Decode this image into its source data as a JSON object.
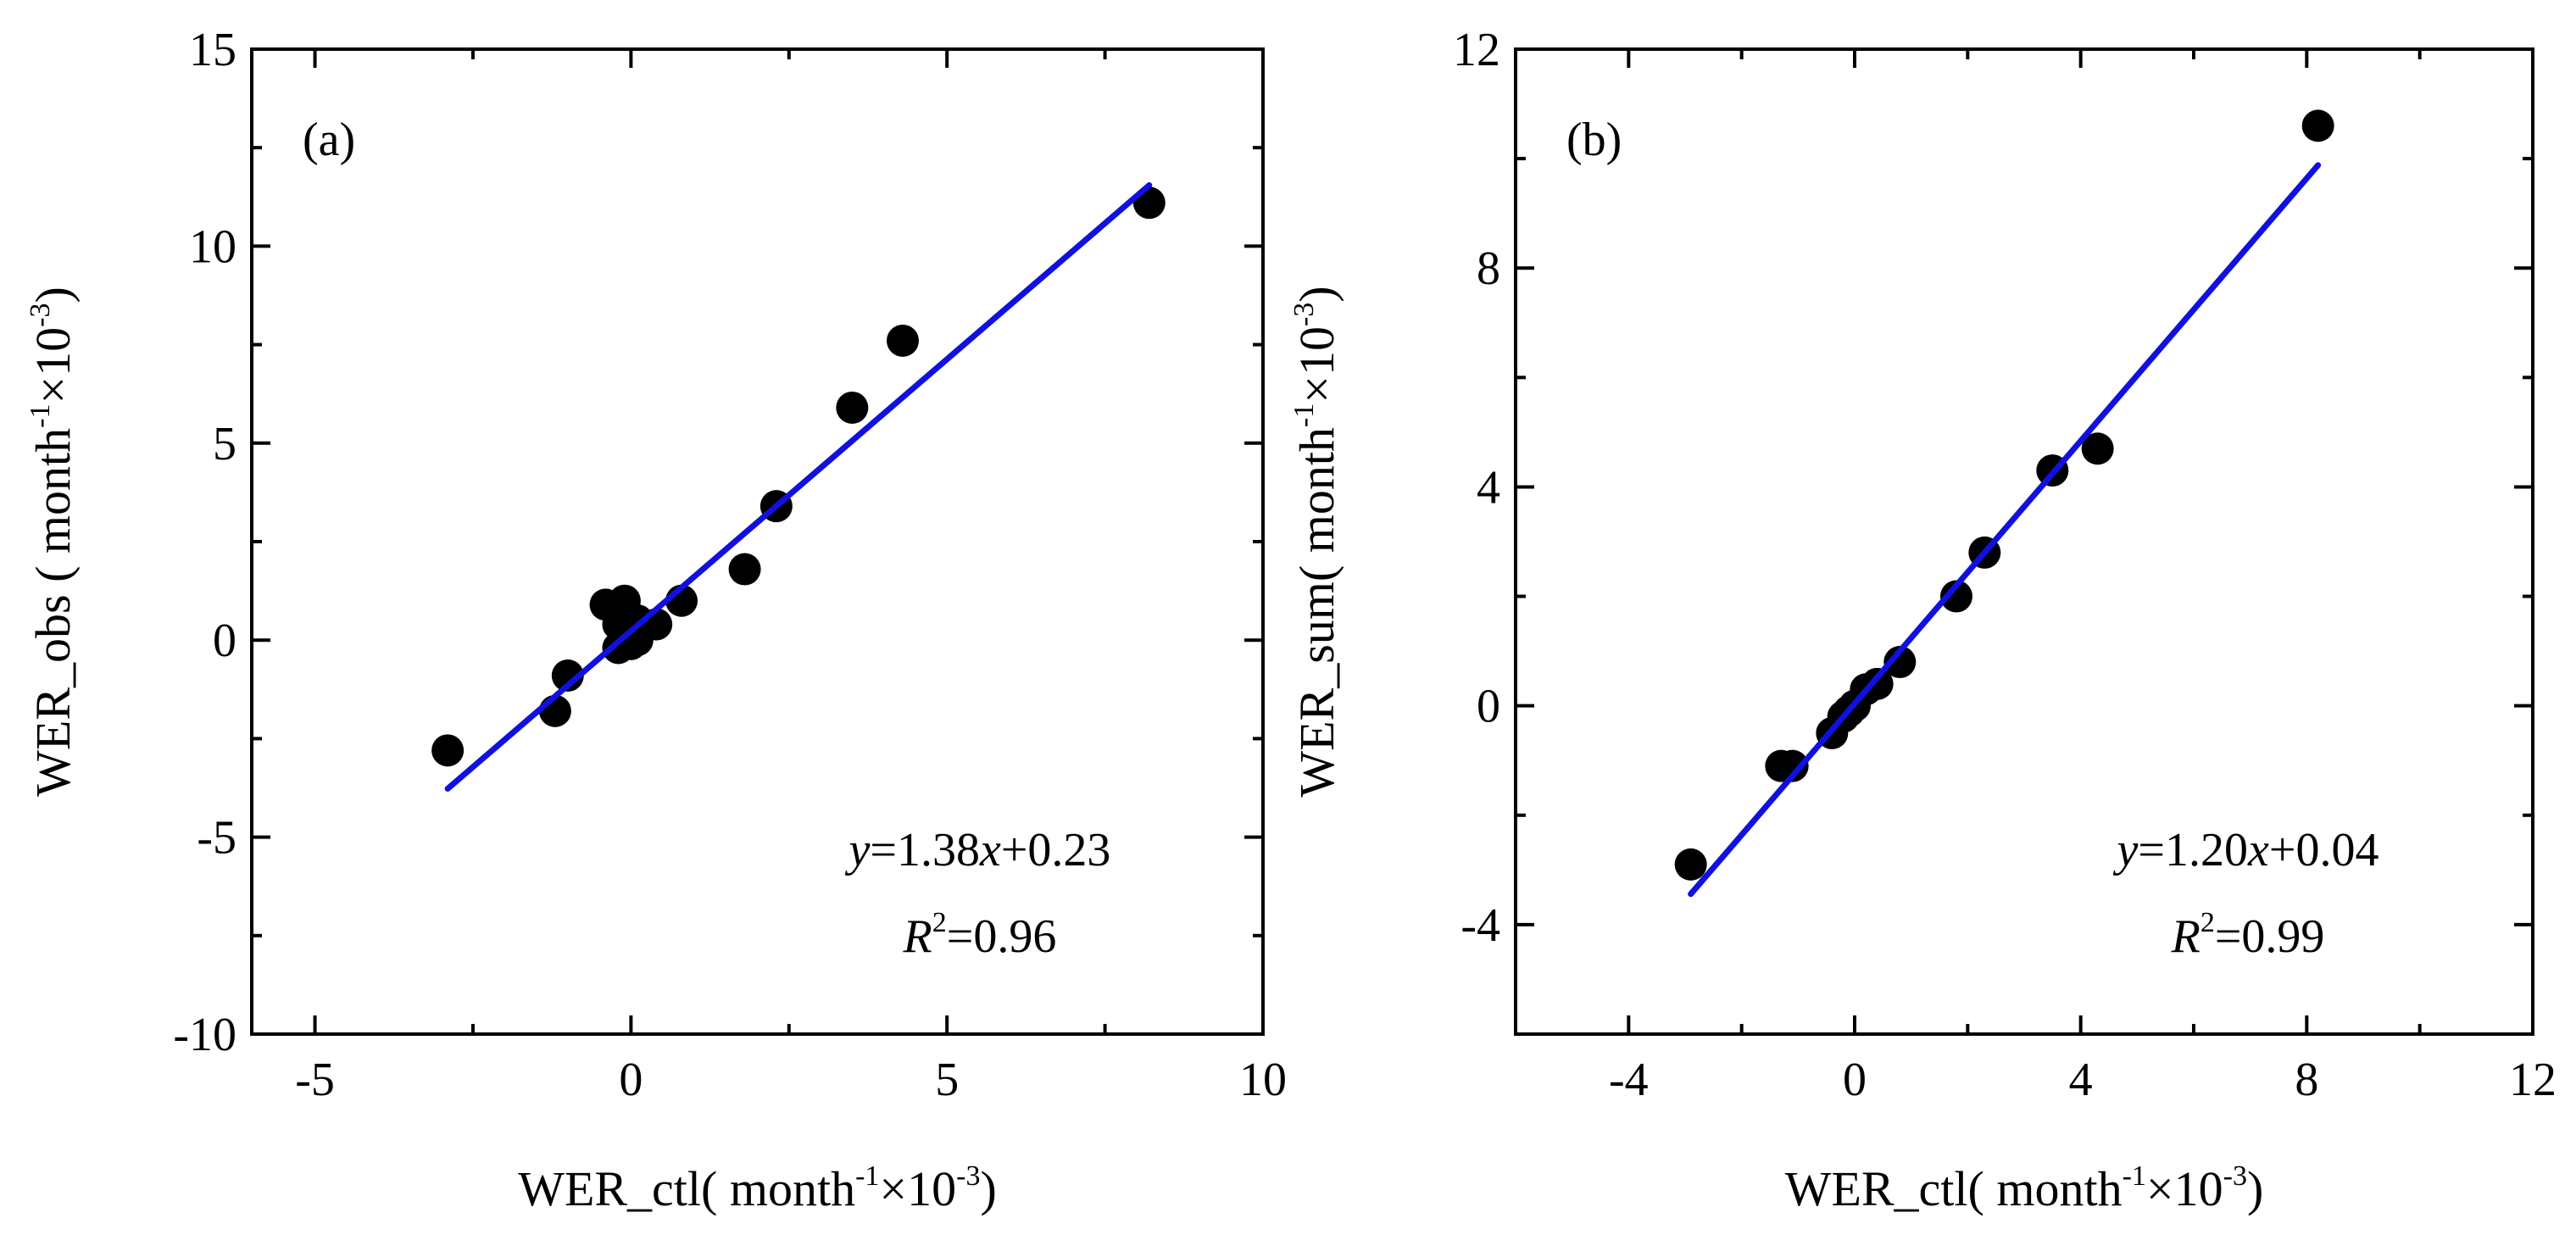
{
  "chart_data": [
    {
      "type": "scatter",
      "panel_label": "(a)",
      "xlim": [
        -6,
        10
      ],
      "ylim": [
        -10,
        15
      ],
      "xticks": [
        -5,
        0,
        5,
        10
      ],
      "xtick_labels": [
        "-5",
        "0",
        "5",
        "10"
      ],
      "yticks": [
        -10,
        -5,
        0,
        5,
        10,
        15
      ],
      "ytick_labels": [
        "-10",
        "-5",
        "0",
        "5",
        "10",
        "15"
      ],
      "xlabel": {
        "base": "WER_ctl( month",
        "sup1": "-1",
        "mid": "×10",
        "sup2": "-3",
        "end": ")"
      },
      "ylabel": {
        "base": "WER_obs ( month",
        "sup1": "-1",
        "mid": "×10",
        "sup2": "-3",
        "end": ")"
      },
      "points": [
        {
          "x": -2.9,
          "y": -2.8
        },
        {
          "x": -1.2,
          "y": -1.8
        },
        {
          "x": -1.0,
          "y": -0.9
        },
        {
          "x": -0.4,
          "y": 0.9
        },
        {
          "x": -0.1,
          "y": 1.0
        },
        {
          "x": -0.2,
          "y": 0.4
        },
        {
          "x": 0.1,
          "y": 0.5
        },
        {
          "x": -0.2,
          "y": -0.2
        },
        {
          "x": 0.0,
          "y": -0.1
        },
        {
          "x": 0.1,
          "y": 0.0
        },
        {
          "x": 0.4,
          "y": 0.4
        },
        {
          "x": 0.8,
          "y": 1.0
        },
        {
          "x": 1.8,
          "y": 1.8
        },
        {
          "x": 2.3,
          "y": 3.4
        },
        {
          "x": 3.5,
          "y": 5.9
        },
        {
          "x": 4.3,
          "y": 7.6
        },
        {
          "x": 8.2,
          "y": 11.1
        }
      ],
      "fit": {
        "x_start": -2.9,
        "x_end": 8.2,
        "slope": 1.38,
        "intercept": 0.23,
        "color": "#1010e0"
      },
      "marker_color": "#000000",
      "equation": {
        "y": "y",
        "mid": "=1.38",
        "x": "x",
        "end": "+0.23"
      },
      "r2": {
        "r": "R",
        "sup": "2",
        "val": "=0.96"
      }
    },
    {
      "type": "scatter",
      "panel_label": "(b)",
      "xlim": [
        -6,
        12
      ],
      "ylim": [
        -6,
        12
      ],
      "xticks": [
        -4,
        0,
        4,
        8,
        12
      ],
      "xtick_labels": [
        "-4",
        "0",
        "4",
        "8",
        "12"
      ],
      "yticks": [
        -4,
        0,
        4,
        8,
        12
      ],
      "ytick_labels": [
        "-4",
        "0",
        "4",
        "8",
        "12"
      ],
      "xlabel": {
        "base": "WER_ctl( month",
        "sup1": "-1",
        "mid": "×10",
        "sup2": "-3",
        "end": ")"
      },
      "ylabel": {
        "base": "WER_sum( month",
        "sup1": "-1",
        "mid": "×10",
        "sup2": "-3",
        "end": ")"
      },
      "points": [
        {
          "x": -2.9,
          "y": -2.9
        },
        {
          "x": -1.3,
          "y": -1.1
        },
        {
          "x": -1.1,
          "y": -1.1
        },
        {
          "x": -0.4,
          "y": -0.5
        },
        {
          "x": -0.2,
          "y": -0.2
        },
        {
          "x": -0.1,
          "y": -0.1
        },
        {
          "x": 0.0,
          "y": 0.0
        },
        {
          "x": 0.2,
          "y": 0.3
        },
        {
          "x": 0.4,
          "y": 0.4
        },
        {
          "x": 0.8,
          "y": 0.8
        },
        {
          "x": 1.8,
          "y": 2.0
        },
        {
          "x": 2.3,
          "y": 2.8
        },
        {
          "x": 3.5,
          "y": 4.3
        },
        {
          "x": 4.3,
          "y": 4.7
        },
        {
          "x": 8.2,
          "y": 10.6
        }
      ],
      "fit": {
        "x_start": -2.9,
        "x_end": 8.2,
        "slope": 1.2,
        "intercept": 0.04,
        "color": "#1010e0"
      },
      "marker_color": "#000000",
      "equation": {
        "y": "y",
        "mid": "=1.20",
        "x": "x",
        "end": "+0.04"
      },
      "r2": {
        "r": "R",
        "sup": "2",
        "val": "=0.99"
      }
    }
  ]
}
